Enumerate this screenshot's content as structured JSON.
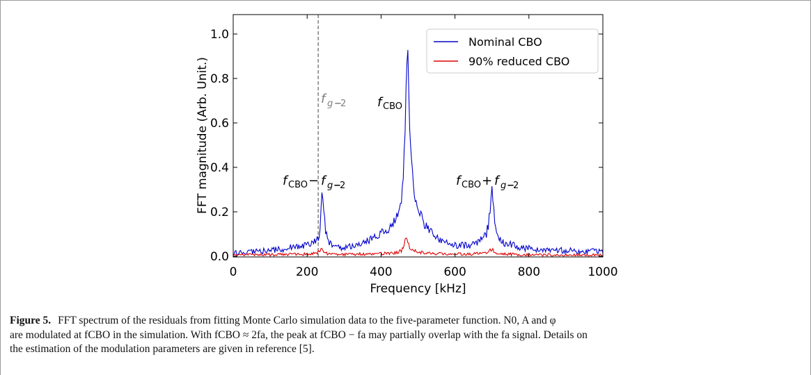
{
  "chart_data": {
    "type": "line",
    "xlabel": "Frequency [kHz]",
    "ylabel": "FFT magnitude (Arb. Unit.)",
    "xlim": [
      0,
      1000
    ],
    "ylim": [
      0,
      1.05
    ],
    "xticks": [
      0,
      200,
      400,
      600,
      800,
      1000
    ],
    "yticks": [
      0.0,
      0.2,
      0.4,
      0.6,
      0.8,
      1.0
    ],
    "xtick_labels": [
      "0",
      "200",
      "400",
      "600",
      "800",
      "1000"
    ],
    "ytick_labels": [
      "0.0",
      "0.2",
      "0.4",
      "0.6",
      "0.8",
      "1.0"
    ],
    "grid": false,
    "legend_position": "top-right",
    "vline": {
      "x": 230,
      "color": "#808080",
      "style": "dashed"
    },
    "annotations": [
      {
        "text": "f_{g-2}",
        "x": 240,
        "y": 0.71,
        "color": "#808080"
      },
      {
        "text": "f_CBO",
        "x": 405,
        "y": 0.7,
        "color": "#000000"
      },
      {
        "text": "f_CBO − f_{g-2}",
        "x": 135,
        "y": 0.32,
        "color": "#000000"
      },
      {
        "text": "f_CBO + f_{g-2}",
        "x": 550,
        "y": 0.32,
        "color": "#000000"
      }
    ],
    "series": [
      {
        "name": "Nominal CBO",
        "color": "#0000cc",
        "x": [
          0,
          20,
          40,
          60,
          80,
          100,
          120,
          140,
          160,
          180,
          200,
          210,
          220,
          225,
          230,
          235,
          238,
          241,
          245,
          250,
          260,
          280,
          300,
          320,
          340,
          360,
          380,
          400,
          420,
          435,
          445,
          450,
          455,
          460,
          465,
          468,
          471,
          474,
          478,
          483,
          490,
          500,
          510,
          520,
          530,
          540,
          560,
          580,
          600,
          620,
          640,
          660,
          675,
          685,
          690,
          695,
          698,
          701,
          704,
          708,
          715,
          725,
          740,
          760,
          780,
          800,
          820,
          840,
          860,
          880,
          900,
          920,
          940,
          960,
          980,
          1000
        ],
        "values": [
          0.015,
          0.016,
          0.018,
          0.02,
          0.022,
          0.025,
          0.03,
          0.035,
          0.04,
          0.045,
          0.055,
          0.06,
          0.068,
          0.072,
          0.08,
          0.12,
          0.2,
          0.285,
          0.2,
          0.11,
          0.06,
          0.042,
          0.038,
          0.045,
          0.055,
          0.065,
          0.08,
          0.1,
          0.125,
          0.15,
          0.18,
          0.21,
          0.26,
          0.36,
          0.6,
          0.85,
          1.0,
          0.8,
          0.55,
          0.38,
          0.29,
          0.22,
          0.175,
          0.14,
          0.115,
          0.095,
          0.07,
          0.055,
          0.05,
          0.048,
          0.05,
          0.06,
          0.08,
          0.1,
          0.14,
          0.21,
          0.26,
          0.295,
          0.25,
          0.15,
          0.09,
          0.065,
          0.055,
          0.048,
          0.04,
          0.035,
          0.032,
          0.03,
          0.028,
          0.026,
          0.025,
          0.024,
          0.023,
          0.022,
          0.022,
          0.021
        ]
      },
      {
        "name": "90% reduced CBO",
        "color": "#dd0000",
        "x": [
          0,
          50,
          100,
          150,
          200,
          225,
          235,
          240,
          245,
          255,
          300,
          350,
          400,
          440,
          455,
          462,
          467,
          470,
          473,
          480,
          500,
          550,
          600,
          650,
          690,
          697,
          701,
          706,
          720,
          760,
          800,
          850,
          900,
          950,
          1000
        ],
        "values": [
          0.005,
          0.006,
          0.007,
          0.008,
          0.01,
          0.015,
          0.025,
          0.03,
          0.02,
          0.01,
          0.008,
          0.01,
          0.012,
          0.015,
          0.025,
          0.05,
          0.08,
          0.09,
          0.06,
          0.03,
          0.018,
          0.012,
          0.01,
          0.01,
          0.015,
          0.03,
          0.035,
          0.02,
          0.01,
          0.008,
          0.007,
          0.006,
          0.006,
          0.005,
          0.005
        ]
      }
    ]
  },
  "caption": {
    "label": "Figure 5.",
    "line1": "FFT spectrum of the residuals from fitting Monte Carlo simulation data to the five-parameter function. N0, A and φ",
    "line2": "are modulated at fCBO in the simulation. With fCBO ≈ 2fa, the peak at fCBO − fa may partially overlap with the fa signal. Details on",
    "line3": "the estimation of the modulation parameters are given in reference [5].",
    "ref": "5"
  }
}
